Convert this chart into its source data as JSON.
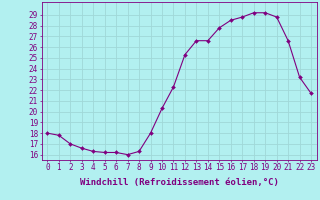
{
  "x": [
    0,
    1,
    2,
    3,
    4,
    5,
    6,
    7,
    8,
    9,
    10,
    11,
    12,
    13,
    14,
    15,
    16,
    17,
    18,
    19,
    20,
    21,
    22,
    23
  ],
  "y": [
    18.0,
    17.8,
    17.0,
    16.6,
    16.3,
    16.2,
    16.2,
    16.0,
    16.3,
    18.0,
    20.3,
    22.3,
    25.3,
    26.6,
    26.6,
    27.8,
    28.5,
    28.8,
    29.2,
    29.2,
    28.8,
    26.6,
    23.2,
    21.7
  ],
  "line_color": "#800080",
  "marker": "D",
  "marker_size": 2.0,
  "bg_color": "#b2f0f0",
  "grid_color": "#a0d8d8",
  "axis_color": "#800080",
  "xlabel": "Windchill (Refroidissement éolien,°C)",
  "ylim": [
    15.5,
    30.2
  ],
  "xlim": [
    -0.5,
    23.5
  ],
  "yticks": [
    16,
    17,
    18,
    19,
    20,
    21,
    22,
    23,
    24,
    25,
    26,
    27,
    28,
    29
  ],
  "xticks": [
    0,
    1,
    2,
    3,
    4,
    5,
    6,
    7,
    8,
    9,
    10,
    11,
    12,
    13,
    14,
    15,
    16,
    17,
    18,
    19,
    20,
    21,
    22,
    23
  ],
  "tick_fontsize": 5.5,
  "xlabel_fontsize": 6.5
}
